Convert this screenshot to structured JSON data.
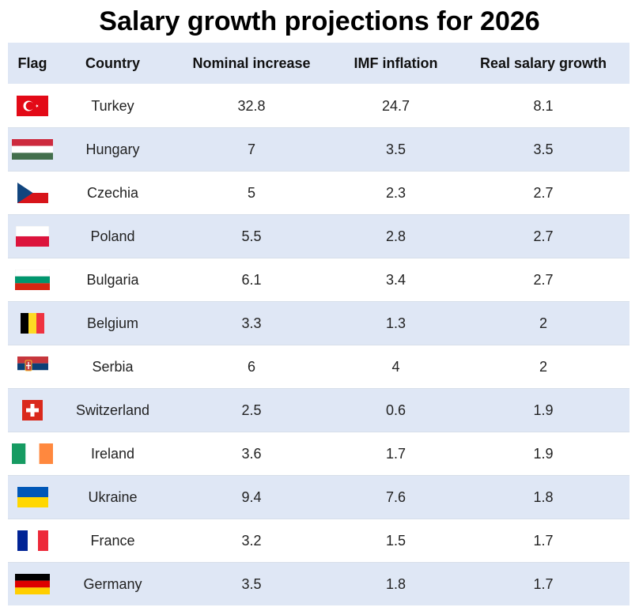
{
  "title": "Salary growth projections for 2026",
  "chart_data": {
    "type": "table",
    "title": "Salary growth projections for 2026",
    "columns": [
      "Flag",
      "Country",
      "Nominal increase",
      "IMF inflation",
      "Real salary growth"
    ],
    "rows": [
      {
        "flag": "turkey-flag-icon",
        "country": "Turkey",
        "nominal": "32.8",
        "inflation": "24.7",
        "real": "8.1"
      },
      {
        "flag": "hungary-flag-icon",
        "country": "Hungary",
        "nominal": "7",
        "inflation": "3.5",
        "real": "3.5"
      },
      {
        "flag": "czechia-flag-icon",
        "country": "Czechia",
        "nominal": "5",
        "inflation": "2.3",
        "real": "2.7"
      },
      {
        "flag": "poland-flag-icon",
        "country": "Poland",
        "nominal": "5.5",
        "inflation": "2.8",
        "real": "2.7"
      },
      {
        "flag": "bulgaria-flag-icon",
        "country": "Bulgaria",
        "nominal": "6.1",
        "inflation": "3.4",
        "real": "2.7"
      },
      {
        "flag": "belgium-flag-icon",
        "country": "Belgium",
        "nominal": "3.3",
        "inflation": "1.3",
        "real": "2"
      },
      {
        "flag": "serbia-flag-icon",
        "country": "Serbia",
        "nominal": "6",
        "inflation": "4",
        "real": "2"
      },
      {
        "flag": "switzerland-flag-icon",
        "country": "Switzerland",
        "nominal": "2.5",
        "inflation": "0.6",
        "real": "1.9"
      },
      {
        "flag": "ireland-flag-icon",
        "country": "Ireland",
        "nominal": "3.6",
        "inflation": "1.7",
        "real": "1.9"
      },
      {
        "flag": "ukraine-flag-icon",
        "country": "Ukraine",
        "nominal": "9.4",
        "inflation": "7.6",
        "real": "1.8"
      },
      {
        "flag": "france-flag-icon",
        "country": "France",
        "nominal": "3.2",
        "inflation": "1.5",
        "real": "1.7"
      },
      {
        "flag": "germany-flag-icon",
        "country": "Germany",
        "nominal": "3.5",
        "inflation": "1.8",
        "real": "1.7"
      }
    ]
  },
  "colors": {
    "header_bg": "#dfe7f5",
    "stripe_bg": "#dfe7f5",
    "row_bg": "#ffffff",
    "title_text": "#000000"
  }
}
